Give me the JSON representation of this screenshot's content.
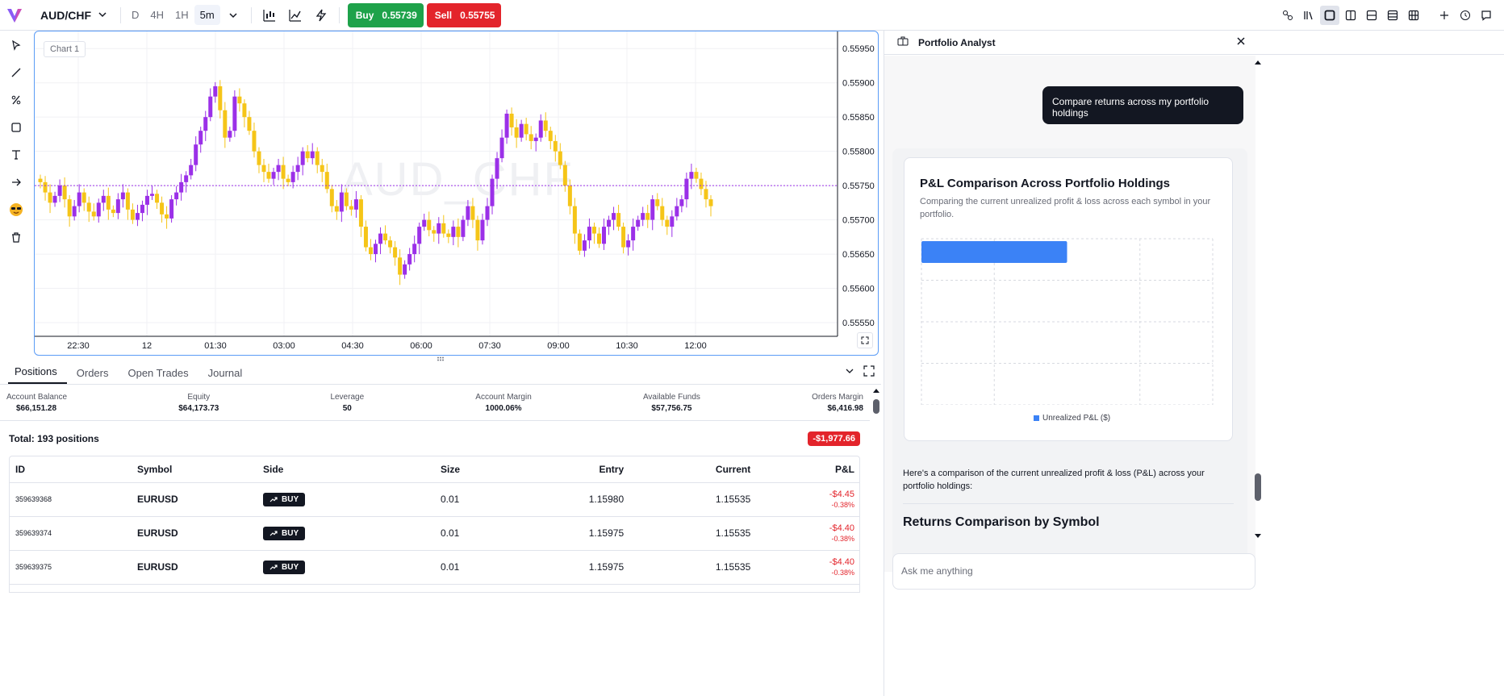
{
  "topbar": {
    "symbol": "AUD/CHF",
    "timeframes": [
      "D",
      "4H",
      "1H",
      "5m"
    ],
    "active_timeframe": "5m",
    "buy_label": "Buy",
    "buy_price": "0.55739",
    "sell_label": "Sell",
    "sell_price": "0.55755"
  },
  "chart": {
    "label": "Chart 1",
    "watermark": "AUD_CHF",
    "price_line": 0.5575,
    "y_ticks": [
      "0.55950",
      "0.55900",
      "0.55850",
      "0.55800",
      "0.55750",
      "0.55700",
      "0.55650",
      "0.55600",
      "0.55550"
    ],
    "x_ticks": [
      "22:30",
      "12",
      "01:30",
      "03:00",
      "04:30",
      "06:00",
      "07:30",
      "09:00",
      "10:30",
      "12:00"
    ],
    "colors": {
      "up": "#9b30e8",
      "down": "#f5c518",
      "price_line": "#9b30e8"
    }
  },
  "chart_data": {
    "type": "candlestick",
    "ylim": [
      0.5553,
      0.55975
    ],
    "closes": [
      0.55755,
      0.5574,
      0.55725,
      0.55735,
      0.5575,
      0.5573,
      0.55705,
      0.5572,
      0.5574,
      0.55725,
      0.55712,
      0.55705,
      0.55725,
      0.55735,
      0.55715,
      0.5571,
      0.5573,
      0.5574,
      0.55715,
      0.557,
      0.5571,
      0.55722,
      0.55735,
      0.55738,
      0.55725,
      0.55708,
      0.55702,
      0.5573,
      0.5574,
      0.55755,
      0.55765,
      0.5578,
      0.5581,
      0.5583,
      0.5585,
      0.5588,
      0.55895,
      0.5586,
      0.5582,
      0.5583,
      0.5588,
      0.5587,
      0.5585,
      0.5583,
      0.558,
      0.5578,
      0.5577,
      0.5576,
      0.5577,
      0.5578,
      0.5576,
      0.55755,
      0.5577,
      0.5578,
      0.558,
      0.5579,
      0.558,
      0.5578,
      0.5577,
      0.55745,
      0.5572,
      0.55712,
      0.5574,
      0.5572,
      0.55715,
      0.5573,
      0.5569,
      0.5566,
      0.5565,
      0.55665,
      0.5568,
      0.5567,
      0.5566,
      0.55645,
      0.5562,
      0.55635,
      0.5565,
      0.55665,
      0.5569,
      0.557,
      0.55685,
      0.5568,
      0.55695,
      0.5568,
      0.55675,
      0.5569,
      0.55675,
      0.557,
      0.5572,
      0.557,
      0.5567,
      0.557,
      0.5572,
      0.5576,
      0.5579,
      0.5582,
      0.55855,
      0.55835,
      0.5582,
      0.5584,
      0.55825,
      0.55815,
      0.5582,
      0.55845,
      0.5583,
      0.55815,
      0.558,
      0.5578,
      0.5575,
      0.5572,
      0.5568,
      0.55655,
      0.5567,
      0.5569,
      0.5568,
      0.55665,
      0.5569,
      0.557,
      0.5571,
      0.5569,
      0.5566,
      0.5567,
      0.5569,
      0.557,
      0.5571,
      0.557,
      0.5573,
      0.5572,
      0.557,
      0.5569,
      0.55705,
      0.5572,
      0.5573,
      0.5576,
      0.5577,
      0.5576,
      0.55745,
      0.5573,
      0.5572
    ]
  },
  "bottom": {
    "tabs": [
      "Positions",
      "Orders",
      "Open Trades",
      "Journal"
    ],
    "stats": [
      {
        "label": "Account Balance",
        "value": "$66,151.28"
      },
      {
        "label": "Equity",
        "value": "$64,173.73"
      },
      {
        "label": "Leverage",
        "value": "50"
      },
      {
        "label": "Account Margin",
        "value": "1000.06%"
      },
      {
        "label": "Available Funds",
        "value": "$57,756.75"
      },
      {
        "label": "Orders Margin",
        "value": "$6,416.98"
      }
    ],
    "total_label": "Total: 193 positions",
    "total_pnl": "-$1,977.66",
    "columns": [
      "ID",
      "Symbol",
      "Side",
      "Size",
      "Entry",
      "Current",
      "P&L"
    ],
    "rows": [
      {
        "id": "359639368",
        "symbol": "EURUSD",
        "side": "BUY",
        "size": "0.01",
        "entry": "1.15980",
        "current": "1.15535",
        "pnl": "-$4.45",
        "pnl_pct": "-0.38%"
      },
      {
        "id": "359639374",
        "symbol": "EURUSD",
        "side": "BUY",
        "size": "0.01",
        "entry": "1.15975",
        "current": "1.15535",
        "pnl": "-$4.40",
        "pnl_pct": "-0.38%"
      },
      {
        "id": "359639375",
        "symbol": "EURUSD",
        "side": "BUY",
        "size": "0.01",
        "entry": "1.15975",
        "current": "1.15535",
        "pnl": "-$4.40",
        "pnl_pct": "-0.38%"
      }
    ]
  },
  "analyst": {
    "title": "Portfolio Analyst",
    "user_message": "Compare returns across my portfolio holdings",
    "card_title": "P&L Comparison Across Portfolio Holdings",
    "card_subtitle": "Comparing the current unrealized profit & loss across each symbol in your portfolio.",
    "legend": "Unrealized P&L ($)",
    "bar_fraction": 0.5,
    "bar_color": "#3b82f6",
    "response_text": "Here's a comparison of the current unrealized profit & loss (P&L) across your portfolio holdings:",
    "section_heading": "Returns Comparison by Symbol",
    "input_placeholder": "Ask me anything"
  }
}
